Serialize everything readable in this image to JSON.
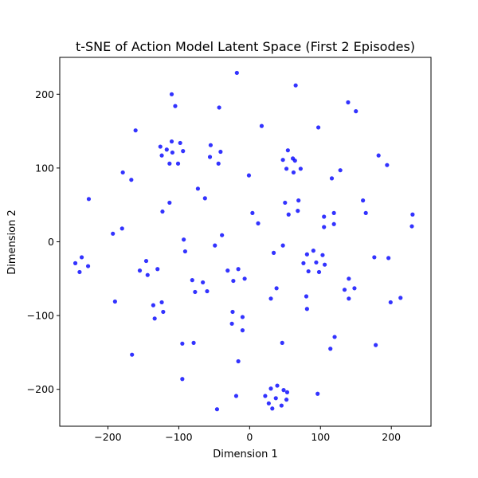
{
  "colors": {
    "point": "#0000ff",
    "axis": "#000000",
    "background": "#ffffff"
  },
  "chart_data": {
    "type": "scatter",
    "title": "t-SNE of Action Model Latent Space (First 2 Episodes)",
    "xlabel": "Dimension 1",
    "ylabel": "Dimension 2",
    "xlim": [
      -268,
      256
    ],
    "ylim": [
      -250,
      250
    ],
    "xticks": [
      -200,
      -100,
      0,
      100,
      200
    ],
    "yticks": [
      -200,
      -100,
      0,
      100,
      200
    ],
    "xtick_labels": [
      "−200",
      "−100",
      "0",
      "100",
      "200"
    ],
    "ytick_labels": [
      "−200",
      "−100",
      "0",
      "100",
      "200"
    ],
    "grid": false,
    "legend": "none",
    "series": [
      {
        "values": [
          {
            "x": -18,
            "y": 229
          },
          {
            "x": 65,
            "y": 212
          },
          {
            "x": -110,
            "y": 200
          },
          {
            "x": 139,
            "y": 189
          },
          {
            "x": -105,
            "y": 184
          },
          {
            "x": -43,
            "y": 182
          },
          {
            "x": 150,
            "y": 177
          },
          {
            "x": 17,
            "y": 157
          },
          {
            "x": 97,
            "y": 155
          },
          {
            "x": -161,
            "y": 151
          },
          {
            "x": -110,
            "y": 136
          },
          {
            "x": -98,
            "y": 134
          },
          {
            "x": -126,
            "y": 129
          },
          {
            "x": -117,
            "y": 125
          },
          {
            "x": -109,
            "y": 121
          },
          {
            "x": -94,
            "y": 123
          },
          {
            "x": -124,
            "y": 117
          },
          {
            "x": -113,
            "y": 106
          },
          {
            "x": -101,
            "y": 106
          },
          {
            "x": -55,
            "y": 131
          },
          {
            "x": -41,
            "y": 122
          },
          {
            "x": -56,
            "y": 115
          },
          {
            "x": -44,
            "y": 106
          },
          {
            "x": 54,
            "y": 124
          },
          {
            "x": 61,
            "y": 113
          },
          {
            "x": 47,
            "y": 111
          },
          {
            "x": 64,
            "y": 110
          },
          {
            "x": 52,
            "y": 99
          },
          {
            "x": 72,
            "y": 99
          },
          {
            "x": 62,
            "y": 94
          },
          {
            "x": 182,
            "y": 117
          },
          {
            "x": 194,
            "y": 104
          },
          {
            "x": 128,
            "y": 97
          },
          {
            "x": -179,
            "y": 94
          },
          {
            "x": -1,
            "y": 90
          },
          {
            "x": 116,
            "y": 86
          },
          {
            "x": -167,
            "y": 84
          },
          {
            "x": -73,
            "y": 72
          },
          {
            "x": -63,
            "y": 59
          },
          {
            "x": -227,
            "y": 58
          },
          {
            "x": 69,
            "y": 56
          },
          {
            "x": 160,
            "y": 56
          },
          {
            "x": -113,
            "y": 53
          },
          {
            "x": 50,
            "y": 53
          },
          {
            "x": 68,
            "y": 42
          },
          {
            "x": -123,
            "y": 41
          },
          {
            "x": 4,
            "y": 39
          },
          {
            "x": 55,
            "y": 37
          },
          {
            "x": 164,
            "y": 39
          },
          {
            "x": 119,
            "y": 39
          },
          {
            "x": 105,
            "y": 34
          },
          {
            "x": 12,
            "y": 25
          },
          {
            "x": 105,
            "y": 20
          },
          {
            "x": 119,
            "y": 24
          },
          {
            "x": 230,
            "y": 37
          },
          {
            "x": 229,
            "y": 21
          },
          {
            "x": -180,
            "y": 18
          },
          {
            "x": -193,
            "y": 11
          },
          {
            "x": -39,
            "y": 9
          },
          {
            "x": -93,
            "y": 3
          },
          {
            "x": -49,
            "y": -5
          },
          {
            "x": 47,
            "y": -5
          },
          {
            "x": -91,
            "y": -13
          },
          {
            "x": 34,
            "y": -15
          },
          {
            "x": -237,
            "y": -21
          },
          {
            "x": -246,
            "y": -29
          },
          {
            "x": -228,
            "y": -33
          },
          {
            "x": -240,
            "y": -41
          },
          {
            "x": -146,
            "y": -26
          },
          {
            "x": -130,
            "y": -37
          },
          {
            "x": -155,
            "y": -39
          },
          {
            "x": -144,
            "y": -45
          },
          {
            "x": 81,
            "y": -17
          },
          {
            "x": 90,
            "y": -12
          },
          {
            "x": 103,
            "y": -18
          },
          {
            "x": 76,
            "y": -29
          },
          {
            "x": 94,
            "y": -28
          },
          {
            "x": 106,
            "y": -31
          },
          {
            "x": 83,
            "y": -40
          },
          {
            "x": 98,
            "y": -41
          },
          {
            "x": 176,
            "y": -21
          },
          {
            "x": 196,
            "y": -22
          },
          {
            "x": -31,
            "y": -39
          },
          {
            "x": -16,
            "y": -37
          },
          {
            "x": -7,
            "y": -50
          },
          {
            "x": -23,
            "y": -53
          },
          {
            "x": -81,
            "y": -52
          },
          {
            "x": -66,
            "y": -55
          },
          {
            "x": -77,
            "y": -68
          },
          {
            "x": -60,
            "y": -67
          },
          {
            "x": 38,
            "y": -63
          },
          {
            "x": 140,
            "y": -50
          },
          {
            "x": 134,
            "y": -65
          },
          {
            "x": 148,
            "y": -63
          },
          {
            "x": 140,
            "y": -77
          },
          {
            "x": 80,
            "y": -74
          },
          {
            "x": 30,
            "y": -77
          },
          {
            "x": 213,
            "y": -76
          },
          {
            "x": 199,
            "y": -82
          },
          {
            "x": -190,
            "y": -81
          },
          {
            "x": -124,
            "y": -82
          },
          {
            "x": -136,
            "y": -86
          },
          {
            "x": 81,
            "y": -91
          },
          {
            "x": -24,
            "y": -95
          },
          {
            "x": -122,
            "y": -95
          },
          {
            "x": -10,
            "y": -102
          },
          {
            "x": -134,
            "y": -104
          },
          {
            "x": -25,
            "y": -111
          },
          {
            "x": -10,
            "y": -120
          },
          {
            "x": 120,
            "y": -129
          },
          {
            "x": -95,
            "y": -138
          },
          {
            "x": -79,
            "y": -137
          },
          {
            "x": 46,
            "y": -137
          },
          {
            "x": 178,
            "y": -140
          },
          {
            "x": 114,
            "y": -145
          },
          {
            "x": -166,
            "y": -153
          },
          {
            "x": -16,
            "y": -162
          },
          {
            "x": -95,
            "y": -186
          },
          {
            "x": 39,
            "y": -195
          },
          {
            "x": 30,
            "y": -199
          },
          {
            "x": 48,
            "y": -201
          },
          {
            "x": -19,
            "y": -209
          },
          {
            "x": 37,
            "y": -212
          },
          {
            "x": 53,
            "y": -204
          },
          {
            "x": 22,
            "y": -209
          },
          {
            "x": 52,
            "y": -214
          },
          {
            "x": 27,
            "y": -219
          },
          {
            "x": 45,
            "y": -222
          },
          {
            "x": 32,
            "y": -226
          },
          {
            "x": 96,
            "y": -206
          },
          {
            "x": -46,
            "y": -227
          }
        ]
      }
    ]
  }
}
